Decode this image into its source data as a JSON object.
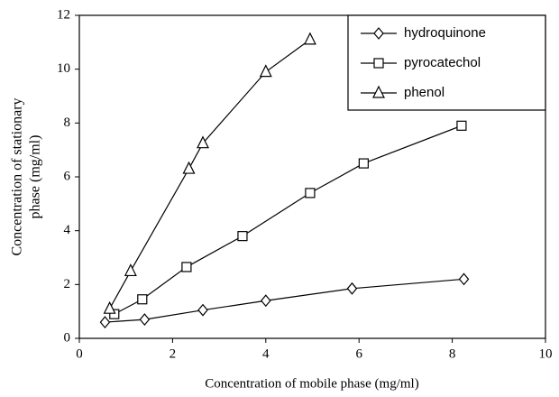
{
  "chart_data": {
    "type": "line",
    "xlabel": "Concentration of mobile phase (mg/ml)",
    "ylabel": [
      "Concentration of stationary",
      "phase (mg/ml)"
    ],
    "xlim": [
      0,
      10
    ],
    "xticks": [
      0,
      2,
      4,
      6,
      8,
      10
    ],
    "ylim": [
      0,
      12
    ],
    "yticks": [
      0,
      2,
      4,
      6,
      8,
      10,
      12
    ],
    "legend": "top-right",
    "series": [
      {
        "name": "hydroquinone",
        "color": "#000000",
        "marker": "diamond",
        "x": [
          0.55,
          1.4,
          2.65,
          4.0,
          5.85,
          8.25
        ],
        "values": [
          0.6,
          0.7,
          1.05,
          1.4,
          1.85,
          2.2
        ]
      },
      {
        "name": "pyrocatechol",
        "color": "#000000",
        "marker": "square",
        "x": [
          0.75,
          1.35,
          2.3,
          3.5,
          4.95,
          6.1,
          8.2
        ],
        "values": [
          0.9,
          1.45,
          2.65,
          3.8,
          5.4,
          6.5,
          7.9
        ]
      },
      {
        "name": "phenol",
        "color": "#000000",
        "marker": "triangle",
        "x": [
          0.65,
          1.1,
          2.35,
          2.65,
          4.0,
          4.95
        ],
        "values": [
          1.1,
          2.5,
          6.3,
          7.25,
          9.9,
          11.1
        ]
      }
    ]
  }
}
